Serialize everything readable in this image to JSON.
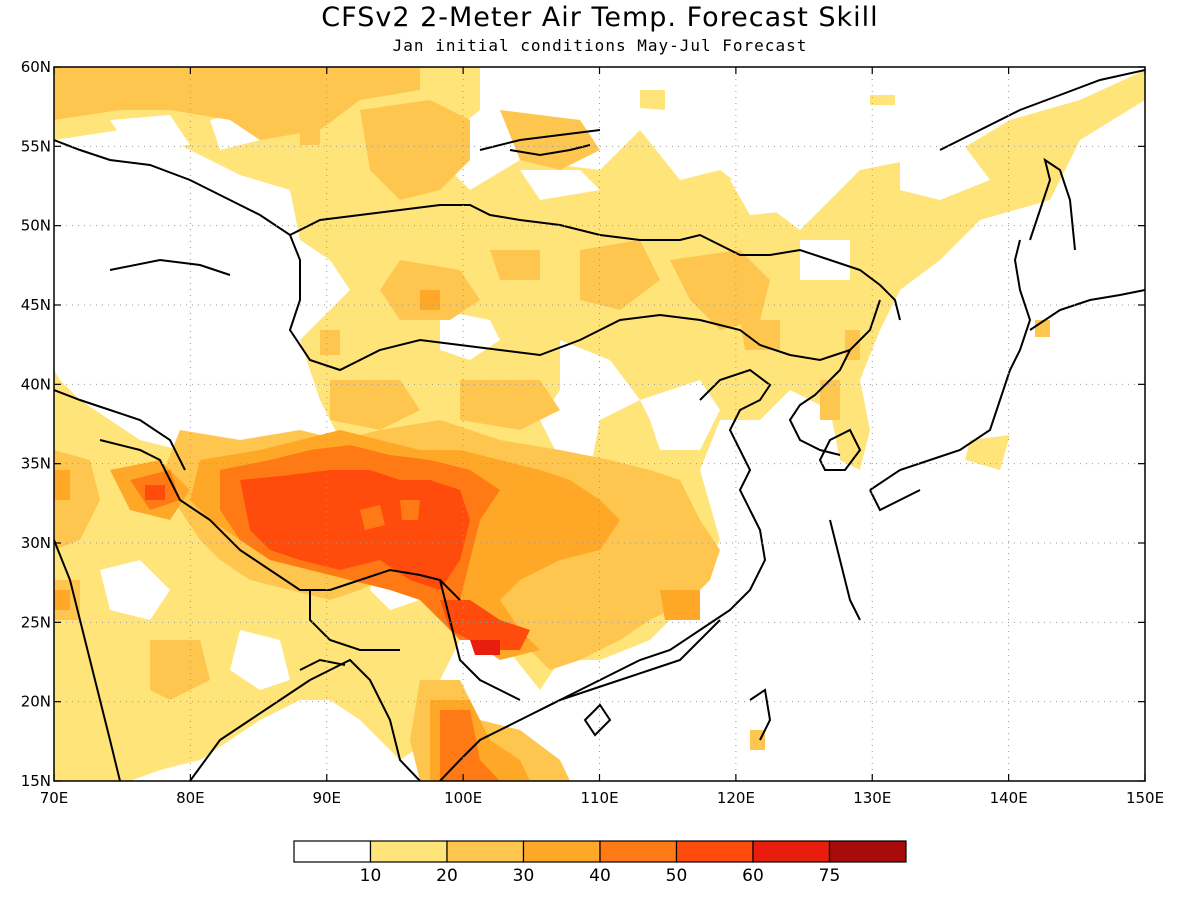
{
  "title": "CFSv2 2-Meter Air Temp. Forecast Skill",
  "subtitle": "Jan initial conditions  May-Jul Forecast",
  "map": {
    "lon_range": [
      70,
      150
    ],
    "lat_range": [
      15,
      60
    ],
    "lon_ticks": [
      "70E",
      "80E",
      "90E",
      "100E",
      "110E",
      "120E",
      "130E",
      "140E",
      "150E"
    ],
    "lat_ticks": [
      "60N",
      "55N",
      "50N",
      "45N",
      "40N",
      "35N",
      "30N",
      "25N",
      "20N",
      "15N"
    ],
    "grid_lines": "dotted"
  },
  "legend": {
    "levels": [
      "10",
      "20",
      "30",
      "40",
      "50",
      "60",
      "75"
    ],
    "colors": [
      "#ffffff",
      "#ffe47a",
      "#ffc64f",
      "#ffa726",
      "#ff7a14",
      "#ff4c0d",
      "#e81d0d",
      "#a70b0b"
    ]
  }
}
